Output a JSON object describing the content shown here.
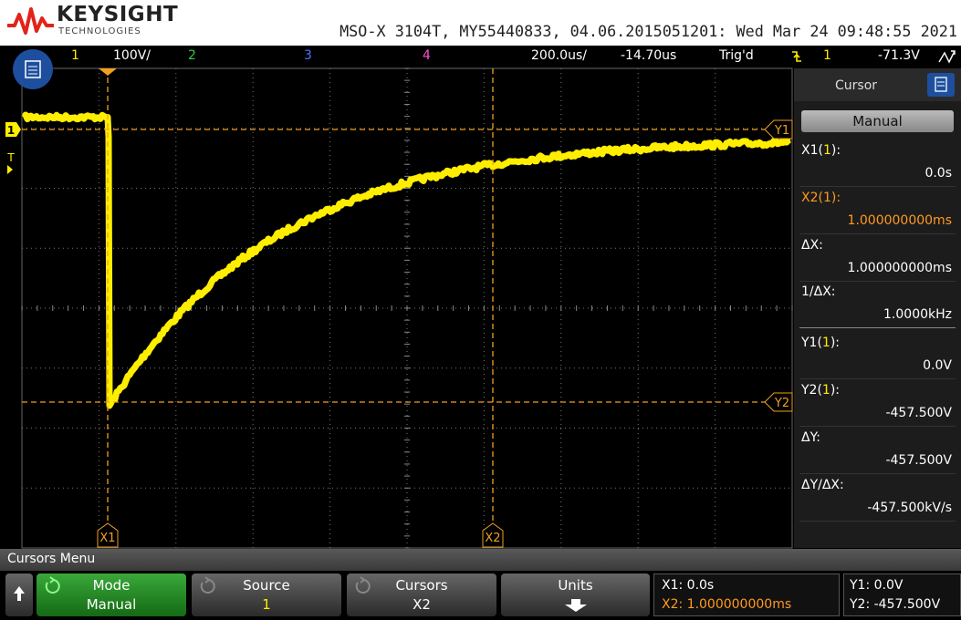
{
  "header": {
    "brand": "KEYSIGHT",
    "brand_sub": "TECHNOLOGIES",
    "instrument": "MSO-X 3104T, MY55440833, 04.06.2015051201: Wed Mar 24 09:48:55 2021"
  },
  "status_bar": {
    "ch1": "1",
    "ch1_scale": "100V/",
    "ch2": "2",
    "ch3": "3",
    "ch4": "4",
    "timebase": "200.0us/",
    "delay": "-14.70us",
    "trigger_status": "Trig'd",
    "trigger_source": "1",
    "trigger_level": "-71.3V"
  },
  "screen": {
    "markers": {
      "ground": "1",
      "trigger": "T"
    },
    "cursors": {
      "x1": "X1",
      "x2": "X2",
      "y1": "Y1",
      "y2": "Y2"
    }
  },
  "panel": {
    "title": "Cursor",
    "mode": "Manual",
    "rows": [
      {
        "label": [
          "X1(",
          "1",
          "):"
        ],
        "value": "0.0s"
      },
      {
        "label": [
          "X2(",
          "1",
          "):"
        ],
        "value": "1.000000000ms",
        "selected": true
      },
      {
        "label": [
          "ΔX:"
        ],
        "value": "1.000000000ms"
      },
      {
        "label": [
          "1/ΔX:"
        ],
        "value": "1.0000kHz"
      },
      {
        "label": [
          "Y1(",
          "1",
          "):"
        ],
        "value": "0.0V"
      },
      {
        "label": [
          "Y2(",
          "1",
          "):"
        ],
        "value": "-457.500V"
      },
      {
        "label": [
          "ΔY:"
        ],
        "value": "-457.500V"
      },
      {
        "label": [
          "ΔY/ΔX:"
        ],
        "value": "-457.500kV/s"
      }
    ]
  },
  "menu": {
    "title": "Cursors Menu",
    "softkeys": [
      {
        "label": "Mode",
        "value": "Manual"
      },
      {
        "label": "Source",
        "value": "1"
      },
      {
        "label": "Cursors",
        "value": "X2"
      },
      {
        "label": "Units"
      }
    ],
    "readout_x": [
      "X1: 0.0s",
      "X2: 1.000000000ms"
    ],
    "readout_y": [
      "Y1: 0.0V",
      "Y2: -457.500V"
    ]
  }
}
